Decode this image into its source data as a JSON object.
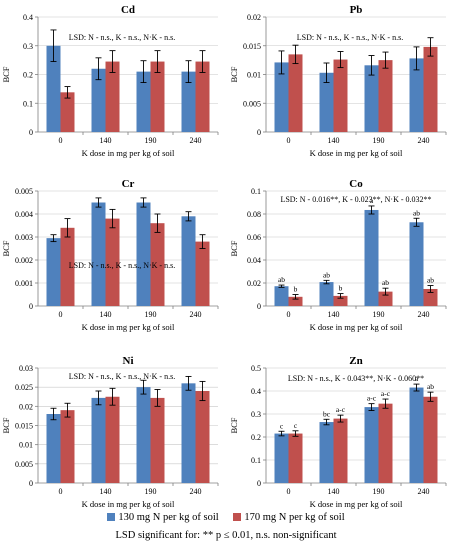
{
  "legend": {
    "series_a": "130 mg N per kg of soil",
    "series_b": "170 mg N per kg of soil",
    "note": "LSD significant for: ** p ≤ 0.01, n.s. non-significant"
  },
  "colors": {
    "series_a": "#4f81bd",
    "series_b": "#c0504d",
    "grid": "#c8c8c8",
    "axis": "#808080"
  },
  "chart_data": [
    {
      "type": "bar",
      "title": "Cd",
      "xlabel": "K dose in mg per kg of soil",
      "ylabel": "BCF",
      "categories": [
        "0",
        "140",
        "190",
        "240"
      ],
      "ylim": [
        0,
        0.4
      ],
      "yticks": [
        "0",
        "0.1",
        "0.2",
        "0.3",
        "0.4"
      ],
      "ytick_values": [
        0,
        0.1,
        0.2,
        0.3,
        0.4
      ],
      "annotation": "LSD: N - n.s., K - n.s., N·K - n.s.",
      "series": [
        {
          "name": "130 mg N per kg of soil",
          "values": [
            0.3,
            0.22,
            0.21,
            0.21
          ],
          "errors": [
            0.055,
            0.038,
            0.038,
            0.038
          ]
        },
        {
          "name": "170 mg N per kg of soil",
          "values": [
            0.138,
            0.245,
            0.245,
            0.245
          ],
          "errors": [
            0.02,
            0.038,
            0.038,
            0.038
          ]
        }
      ]
    },
    {
      "type": "bar",
      "title": "Pb",
      "xlabel": "K dose in mg per kg of soil",
      "ylabel": "BCF",
      "categories": [
        "0",
        "140",
        "190",
        "240"
      ],
      "ylim": [
        0,
        0.02
      ],
      "yticks": [
        "0",
        "0.005",
        "0.01",
        "0.015",
        "0.02"
      ],
      "ytick_values": [
        0,
        0.005,
        0.01,
        0.015,
        0.02
      ],
      "annotation": "LSD: N - n.s., K - n.s., N·K - n.s.",
      "series": [
        {
          "name": "130 mg N per kg of soil",
          "values": [
            0.0121,
            0.0103,
            0.0116,
            0.0128
          ],
          "errors": [
            0.002,
            0.0017,
            0.0017,
            0.002
          ]
        },
        {
          "name": "170 mg N per kg of soil",
          "values": [
            0.0135,
            0.0126,
            0.0125,
            0.0148
          ],
          "errors": [
            0.0016,
            0.0014,
            0.0014,
            0.0016
          ]
        }
      ]
    },
    {
      "type": "bar",
      "title": "Cr",
      "xlabel": "K dose in mg per kg of soil",
      "ylabel": "BCF",
      "categories": [
        "0",
        "140",
        "190",
        "240"
      ],
      "ylim": [
        0,
        0.005
      ],
      "yticks": [
        "0",
        "0.001",
        "0.002",
        "0.003",
        "0.004",
        "0.005"
      ],
      "ytick_values": [
        0,
        0.001,
        0.002,
        0.003,
        0.004,
        0.005
      ],
      "annotation": "LSD: N - n.s., K - n.s., N·K - n.s.",
      "series": [
        {
          "name": "130 mg N per kg of soil",
          "values": [
            0.00295,
            0.0045,
            0.0045,
            0.0039
          ],
          "errors": [
            0.00015,
            0.0002,
            0.0002,
            0.0002
          ]
        },
        {
          "name": "170 mg N per kg of soil",
          "values": [
            0.0034,
            0.0038,
            0.0036,
            0.0028
          ],
          "errors": [
            0.0004,
            0.0004,
            0.0004,
            0.0003
          ]
        }
      ]
    },
    {
      "type": "bar",
      "title": "Co",
      "xlabel": "K dose in mg per kg of soil",
      "ylabel": "BCF",
      "categories": [
        "0",
        "140",
        "190",
        "240"
      ],
      "ylim": [
        0,
        0.1
      ],
      "yticks": [
        "0",
        "0.02",
        "0.04",
        "0.06",
        "0.08",
        "0.1"
      ],
      "ytick_values": [
        0,
        0.02,
        0.04,
        0.06,
        0.08,
        0.1
      ],
      "annotation": "LSD: N - 0.016**, K - 0.023**, N·K - 0.032**",
      "series": [
        {
          "name": "130 mg N per kg of soil",
          "values": [
            0.0172,
            0.0208,
            0.0835,
            0.0728
          ],
          "errors": [
            0.001,
            0.0015,
            0.0035,
            0.0035
          ],
          "labels": [
            "ab",
            "ab",
            "a",
            "ab"
          ]
        },
        {
          "name": "170 mg N per kg of soil",
          "values": [
            0.008,
            0.0088,
            0.0125,
            0.0148
          ],
          "errors": [
            0.002,
            0.002,
            0.003,
            0.003
          ],
          "labels": [
            "b",
            "b",
            "ab",
            "ab"
          ]
        }
      ]
    },
    {
      "type": "bar",
      "title": "Ni",
      "xlabel": "K dose in mg per kg of soil",
      "ylabel": "BCF",
      "categories": [
        "0",
        "140",
        "190",
        "240"
      ],
      "ylim": [
        0,
        0.03
      ],
      "yticks": [
        "0",
        "0.005",
        "0.01",
        "0.015",
        "0.02",
        "0.025",
        "0.03"
      ],
      "ytick_values": [
        0,
        0.005,
        0.01,
        0.015,
        0.02,
        0.025,
        0.03
      ],
      "annotation": "LSD: N - n.s., K - n.s., N·K - n.s.",
      "series": [
        {
          "name": "130 mg N per kg of soil",
          "values": [
            0.018,
            0.0222,
            0.025,
            0.026
          ],
          "errors": [
            0.0015,
            0.0018,
            0.0018,
            0.0018
          ]
        },
        {
          "name": "170 mg N per kg of soil",
          "values": [
            0.019,
            0.0225,
            0.0222,
            0.024
          ],
          "errors": [
            0.0018,
            0.0022,
            0.0022,
            0.0025
          ]
        }
      ]
    },
    {
      "type": "bar",
      "title": "Zn",
      "xlabel": "K dose in mg per kg of soil",
      "ylabel": "BCF",
      "categories": [
        "0",
        "140",
        "190",
        "240"
      ],
      "ylim": [
        0,
        0.5
      ],
      "yticks": [
        "0",
        "0.1",
        "0.2",
        "0.3",
        "0.4",
        "0.5"
      ],
      "ytick_values": [
        0,
        0.1,
        0.2,
        0.3,
        0.4,
        0.5
      ],
      "annotation": "LSD: N - n.s., K - 0.043**, N·K - 0.060**",
      "series": [
        {
          "name": "130 mg N per kg of soil",
          "values": [
            0.215,
            0.265,
            0.33,
            0.415
          ],
          "errors": [
            0.01,
            0.012,
            0.015,
            0.015
          ],
          "labels": [
            "c",
            "bc",
            "a-c",
            "a"
          ]
        },
        {
          "name": "170 mg N per kg of soil",
          "values": [
            0.215,
            0.28,
            0.345,
            0.375
          ],
          "errors": [
            0.012,
            0.015,
            0.02,
            0.02
          ],
          "labels": [
            "c",
            "a-c",
            "a-c",
            "ab"
          ]
        }
      ]
    }
  ]
}
